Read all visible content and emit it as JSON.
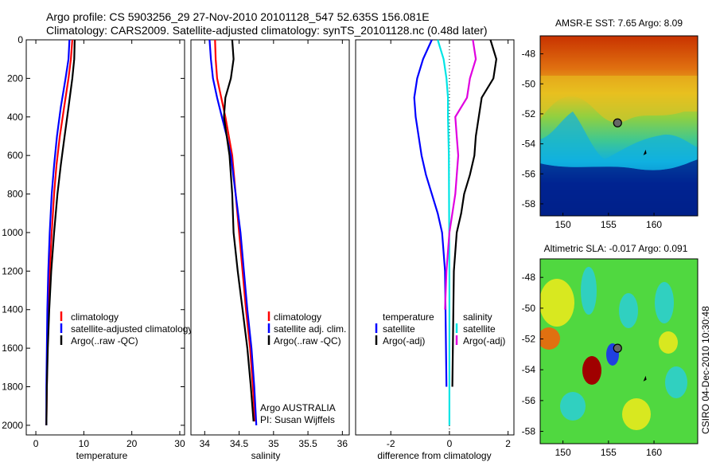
{
  "figure": {
    "title_line1": "Argo profile: CS 5903256_29 27-Nov-2010 20101128_547 52.635S 156.081E",
    "title_line2": "Climatology: CARS2009. Satellite-adjusted climatology: synTS_20101128.nc (0.48d later)",
    "credit": "CSIRO 04-Dec-2010 10:30:48"
  },
  "colors": {
    "climatology": "#ff0000",
    "satellite": "#0000ff",
    "argo": "#000000",
    "temp_diff_satellite": "#0000ff",
    "salinity_diff_satellite": "#00e5e5",
    "salinity_diff_argo": "#e000e0"
  },
  "chart_data": [
    {
      "type": "line",
      "name": "temperature-profile",
      "xlabel": "temperature",
      "ylabel": "",
      "xlim": [
        -2,
        31
      ],
      "ylim": [
        2050,
        0
      ],
      "xticks": [
        0,
        10,
        20,
        30
      ],
      "yticks": [
        0,
        200,
        400,
        600,
        800,
        1000,
        1200,
        1400,
        1600,
        1800,
        2000
      ],
      "legend": [
        "climatology",
        "satellite-adjusted climatology",
        "Argo(..raw -QC)"
      ],
      "legend_position": "lower-right",
      "series": [
        {
          "name": "climatology",
          "color_key": "climatology",
          "x": [
            7.6,
            7.3,
            6.8,
            5.9,
            5.0,
            4.3,
            3.8,
            3.3,
            2.9,
            2.6,
            2.4,
            2.3,
            2.2
          ],
          "y": [
            0,
            100,
            200,
            350,
            500,
            650,
            800,
            1000,
            1200,
            1400,
            1600,
            1800,
            2000
          ]
        },
        {
          "name": "satellite-adjusted climatology",
          "color_key": "satellite",
          "x": [
            7.0,
            6.8,
            6.2,
            5.2,
            4.4,
            3.8,
            3.3,
            2.9,
            2.6,
            2.4,
            2.3,
            2.2,
            2.2
          ],
          "y": [
            0,
            100,
            200,
            350,
            500,
            650,
            800,
            1000,
            1200,
            1400,
            1600,
            1800,
            2000
          ]
        },
        {
          "name": "Argo(..raw -QC)",
          "color_key": "argo",
          "x": [
            8.1,
            8.0,
            7.6,
            6.8,
            6.0,
            5.2,
            4.5,
            3.8,
            3.2,
            2.8,
            2.5,
            2.3,
            2.2
          ],
          "y": [
            0,
            100,
            200,
            350,
            500,
            650,
            800,
            1000,
            1200,
            1400,
            1600,
            1800,
            2000
          ]
        }
      ]
    },
    {
      "type": "line",
      "name": "salinity-profile",
      "xlabel": "salinity",
      "ylabel": "",
      "xlim": [
        33.8,
        36.1
      ],
      "ylim": [
        2050,
        0
      ],
      "xticks": [
        34,
        34.5,
        35,
        35.5,
        36
      ],
      "xtick_labels": [
        "34",
        "34.5",
        "35",
        "35.5",
        "36"
      ],
      "legend": [
        "climatology",
        "satellite adj. clim.",
        "Argo(..raw -QC)"
      ],
      "legend_position": "lower-right",
      "annotation_line1": "Argo AUSTRALIA",
      "annotation_line2": "PI: Susan Wijffels",
      "series": [
        {
          "name": "climatology",
          "color_key": "climatology",
          "x": [
            34.15,
            34.16,
            34.18,
            34.24,
            34.3,
            34.35,
            34.4,
            34.45,
            34.5,
            34.55,
            34.6,
            34.66,
            34.7,
            34.73
          ],
          "y": [
            0,
            100,
            200,
            300,
            400,
            500,
            600,
            800,
            1000,
            1200,
            1400,
            1600,
            1800,
            1980
          ]
        },
        {
          "name": "satellite adj. clim.",
          "color_key": "satellite",
          "x": [
            34.07,
            34.09,
            34.12,
            34.18,
            34.25,
            34.32,
            34.38,
            34.45,
            34.52,
            34.57,
            34.62,
            34.68,
            34.72,
            34.75
          ],
          "y": [
            0,
            100,
            200,
            300,
            400,
            500,
            600,
            800,
            1000,
            1200,
            1400,
            1600,
            1800,
            2000
          ]
        },
        {
          "name": "Argo(..raw -QC)",
          "color_key": "argo",
          "x": [
            34.4,
            34.42,
            34.38,
            34.3,
            34.28,
            34.32,
            34.36,
            34.4,
            34.42,
            34.48,
            34.55,
            34.62,
            34.67,
            34.71
          ],
          "y": [
            0,
            100,
            200,
            300,
            400,
            500,
            600,
            800,
            1000,
            1200,
            1400,
            1600,
            1800,
            1980
          ]
        }
      ]
    },
    {
      "type": "line",
      "name": "difference-profile",
      "xlabel": "difference from climatology",
      "ylabel": "",
      "xlim": [
        -3.2,
        2.2
      ],
      "ylim": [
        2050,
        0
      ],
      "xticks": [
        -2,
        0,
        2
      ],
      "legend_temperature_header": "temperature",
      "legend_salinity_header": "salinity",
      "legend_temperature": [
        "satellite",
        "Argo(-adj)"
      ],
      "legend_salinity": [
        "satellite",
        "Argo(-adj)"
      ],
      "legend_position": "lower-right",
      "series": [
        {
          "name": "temperature satellite",
          "color_key": "temp_diff_satellite",
          "x": [
            -0.6,
            -0.9,
            -1.1,
            -1.2,
            -1.15,
            -1.05,
            -0.95,
            -0.8,
            -0.6,
            -0.4,
            -0.25,
            -0.15,
            -0.1
          ],
          "y": [
            0,
            100,
            200,
            300,
            400,
            500,
            600,
            700,
            800,
            900,
            1000,
            1200,
            1800
          ]
        },
        {
          "name": "temperature Argo(-adj)",
          "color_key": "argo",
          "x": [
            1.4,
            1.6,
            1.5,
            1.1,
            1.0,
            0.9,
            0.85,
            0.7,
            0.5,
            0.4,
            0.25,
            0.15,
            0.1
          ],
          "y": [
            0,
            100,
            200,
            300,
            400,
            500,
            600,
            700,
            800,
            900,
            1000,
            1200,
            1800
          ]
        },
        {
          "name": "salinity satellite",
          "color_key": "salinity_diff_satellite",
          "x": [
            -0.4,
            -0.2,
            -0.1,
            -0.05,
            -0.05,
            -0.02,
            0.0,
            0.0
          ],
          "y": [
            0,
            100,
            200,
            300,
            400,
            600,
            1200,
            2000
          ]
        },
        {
          "name": "salinity Argo(-adj)",
          "color_key": "salinity_diff_argo",
          "x": [
            0.8,
            0.9,
            0.7,
            0.6,
            0.2,
            0.25,
            0.3,
            0.2,
            0.0,
            -0.1,
            -0.15
          ],
          "y": [
            0,
            100,
            200,
            300,
            400,
            500,
            600,
            800,
            1000,
            1200,
            1400
          ]
        }
      ]
    },
    {
      "type": "heatmap",
      "name": "amsr-e-sst-map",
      "title": "AMSR-E SST: 7.65 Argo: 8.09",
      "xlim": [
        147.5,
        164.8
      ],
      "ylim": [
        -58.8,
        -46.8
      ],
      "xticks": [
        150,
        155,
        160
      ],
      "yticks": [
        -48,
        -50,
        -52,
        -54,
        -56,
        -58
      ],
      "marker_circle": {
        "lon": 156.0,
        "lat": -52.6
      },
      "marker_arrow": {
        "lon": 159.0,
        "lat": -54.6
      }
    },
    {
      "type": "heatmap",
      "name": "altimetric-sla-map",
      "title": "Altimetric SLA: -0.017 Argo: 0.091",
      "xlim": [
        147.5,
        164.8
      ],
      "ylim": [
        -58.8,
        -46.8
      ],
      "xticks": [
        150,
        155,
        160
      ],
      "yticks": [
        -48,
        -50,
        -52,
        -54,
        -56,
        -58
      ],
      "marker_circle": {
        "lon": 156.0,
        "lat": -52.6
      },
      "marker_arrow": {
        "lon": 159.0,
        "lat": -54.6
      }
    }
  ]
}
